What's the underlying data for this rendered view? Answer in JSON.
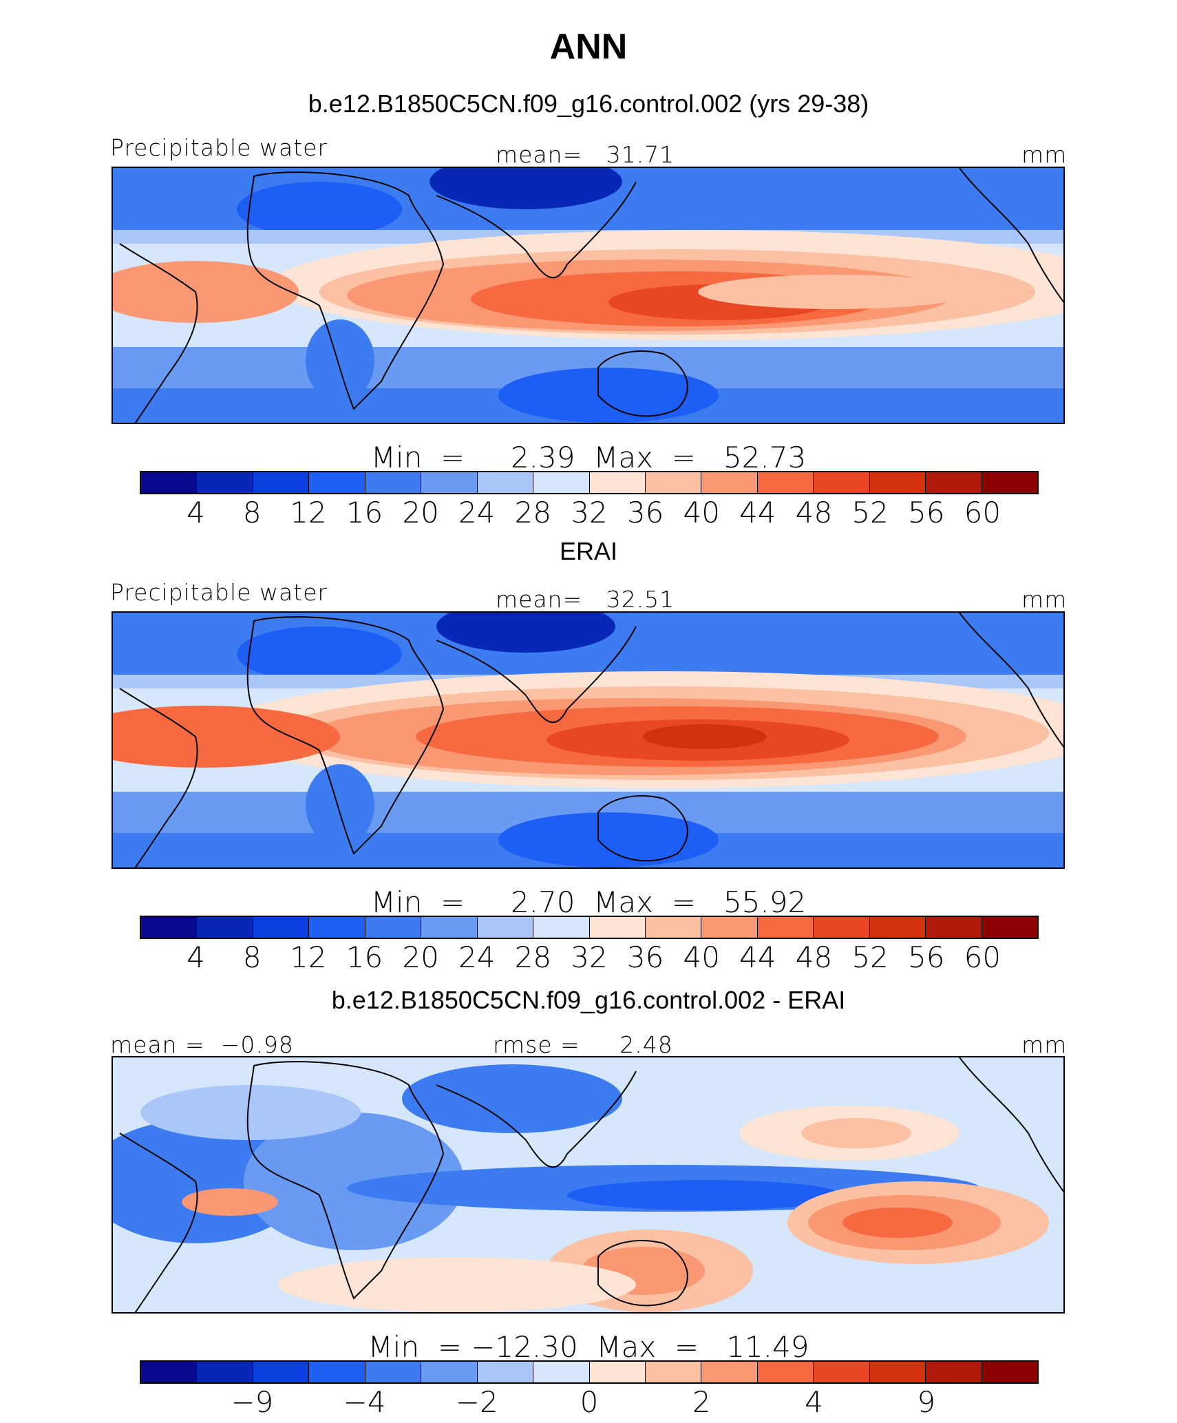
{
  "title": "ANN",
  "palette": [
    "#08088f",
    "#0727b7",
    "#0a40dd",
    "#1d5ef5",
    "#3d7cf0",
    "#6a9bf2",
    "#a9c7f8",
    "#d6e6fb",
    "#fde4d4",
    "#fcc0a3",
    "#f99873",
    "#f76a41",
    "#e94623",
    "#d3300c",
    "#b11908",
    "#8b0000"
  ],
  "panels": [
    {
      "subtitle": "b.e12.B1850C5CN.f09_g16.control.002 (yrs 29-38)",
      "left_label": "Precipitable water",
      "center_label": "mean=   31.71",
      "unit": "mm",
      "minmax": "Min  =     2.39  Max  =   52.73",
      "ticks": [
        "4",
        "8",
        "12",
        "16",
        "20",
        "24",
        "28",
        "32",
        "36",
        "40",
        "44",
        "48",
        "52",
        "56",
        "60"
      ]
    },
    {
      "subtitle": "ERAI",
      "left_label": "Precipitable water",
      "center_label": "mean=   32.51",
      "unit": "mm",
      "minmax": "Min  =     2.70  Max  =   55.92",
      "ticks": [
        "4",
        "8",
        "12",
        "16",
        "20",
        "24",
        "28",
        "32",
        "36",
        "40",
        "44",
        "48",
        "52",
        "56",
        "60"
      ]
    },
    {
      "subtitle": "b.e12.B1850C5CN.f09_g16.control.002 - ERAI",
      "left_label": "mean =  −0.98",
      "center_label": "rmse =     2.48",
      "unit": "mm",
      "minmax": "Min  = −12.30  Max  =   11.49",
      "ticks": [
        "−9",
        "−4",
        "−2",
        "0",
        "2",
        "4",
        "9"
      ]
    }
  ],
  "chart_data": [
    {
      "type": "heatmap",
      "title": "b.e12.B1850C5CN.f09_g16.control.002 (yrs 29-38)",
      "variable": "Precipitable water",
      "units": "mm",
      "mean": 31.71,
      "min": 2.39,
      "max": 52.73,
      "contour_levels": [
        4,
        8,
        12,
        16,
        20,
        24,
        28,
        32,
        36,
        40,
        44,
        48,
        52,
        56,
        60
      ]
    },
    {
      "type": "heatmap",
      "title": "ERAI",
      "variable": "Precipitable water",
      "units": "mm",
      "mean": 32.51,
      "min": 2.7,
      "max": 55.92,
      "contour_levels": [
        4,
        8,
        12,
        16,
        20,
        24,
        28,
        32,
        36,
        40,
        44,
        48,
        52,
        56,
        60
      ]
    },
    {
      "type": "heatmap",
      "title": "b.e12.B1850C5CN.f09_g16.control.002 - ERAI",
      "units": "mm",
      "mean": -0.98,
      "rmse": 2.48,
      "min": -12.3,
      "max": 11.49,
      "contour_levels": [
        -9,
        -4,
        -2,
        0,
        2,
        4,
        9
      ]
    }
  ]
}
